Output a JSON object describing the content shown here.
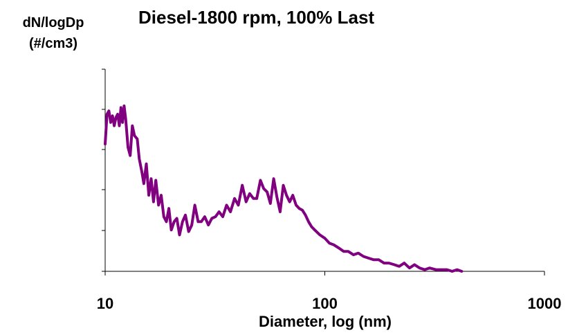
{
  "chart_data": {
    "type": "line",
    "title": "Diesel-1800 rpm, 100% Last",
    "ylabel_line1": "dN/logDp",
    "ylabel_line2": "(#/cm3)",
    "xlabel": "Diameter, log (nm)",
    "xscale": "log",
    "xlim": [
      10,
      1000
    ],
    "xticks": [
      "10",
      "100",
      "1000"
    ],
    "ylim": [
      0,
      1
    ],
    "y_tick_labels_shown": false,
    "grid": false,
    "series": [
      {
        "color": "#800080",
        "x": [
          10.0,
          10.2,
          10.4,
          10.6,
          10.8,
          11.0,
          11.2,
          11.4,
          11.6,
          11.8,
          12.0,
          12.2,
          12.4,
          12.7,
          13.0,
          13.3,
          13.6,
          14.0,
          14.3,
          14.7,
          15.0,
          15.4,
          15.8,
          16.2,
          16.6,
          17.0,
          17.5,
          18.0,
          18.5,
          19.0,
          19.5,
          20.0,
          20.6,
          21.2,
          21.8,
          22.5,
          23.2,
          24.0,
          24.8,
          25.6,
          26.5,
          27.4,
          28.4,
          29.5,
          30.6,
          31.8,
          33.0,
          34.3,
          35.7,
          37.2,
          38.8,
          40.4,
          42.1,
          43.8,
          45.5,
          47.3,
          49.0,
          50.9,
          52.7,
          54.6,
          56.5,
          58.5,
          60.5,
          62.6,
          64.7,
          66.9,
          69.2,
          71.5,
          74.0,
          76.5,
          79.0,
          81.6,
          84.3,
          87.0,
          90.0,
          95.0,
          100.0,
          105.0,
          110.0,
          116.0,
          122.0,
          128.0,
          135.0,
          142.0,
          150.0,
          158.0,
          167.0,
          176.0,
          186.0,
          196.0,
          207.0,
          218.0,
          230.0,
          243.0,
          256.0,
          270.0,
          285.0,
          300.0,
          320.0,
          340.0,
          360.0,
          380.0,
          400.0,
          420.0
        ],
        "y": [
          0.77,
          0.95,
          0.97,
          0.9,
          0.94,
          0.88,
          0.93,
          0.95,
          0.88,
          0.99,
          0.9,
          1.0,
          0.92,
          0.75,
          0.7,
          0.88,
          0.82,
          0.8,
          0.68,
          0.6,
          0.53,
          0.65,
          0.46,
          0.56,
          0.42,
          0.55,
          0.4,
          0.46,
          0.33,
          0.3,
          0.38,
          0.25,
          0.3,
          0.32,
          0.22,
          0.3,
          0.34,
          0.24,
          0.28,
          0.4,
          0.3,
          0.3,
          0.33,
          0.28,
          0.32,
          0.33,
          0.36,
          0.33,
          0.4,
          0.36,
          0.44,
          0.4,
          0.52,
          0.42,
          0.47,
          0.44,
          0.44,
          0.55,
          0.5,
          0.48,
          0.41,
          0.56,
          0.45,
          0.36,
          0.52,
          0.46,
          0.42,
          0.46,
          0.4,
          0.38,
          0.37,
          0.34,
          0.3,
          0.27,
          0.25,
          0.22,
          0.2,
          0.17,
          0.16,
          0.14,
          0.12,
          0.12,
          0.1,
          0.11,
          0.09,
          0.08,
          0.07,
          0.07,
          0.05,
          0.05,
          0.04,
          0.03,
          0.05,
          0.02,
          0.04,
          0.02,
          0.01,
          0.02,
          0.01,
          0.01,
          0.01,
          0.0,
          0.01,
          0.0
        ]
      }
    ]
  }
}
